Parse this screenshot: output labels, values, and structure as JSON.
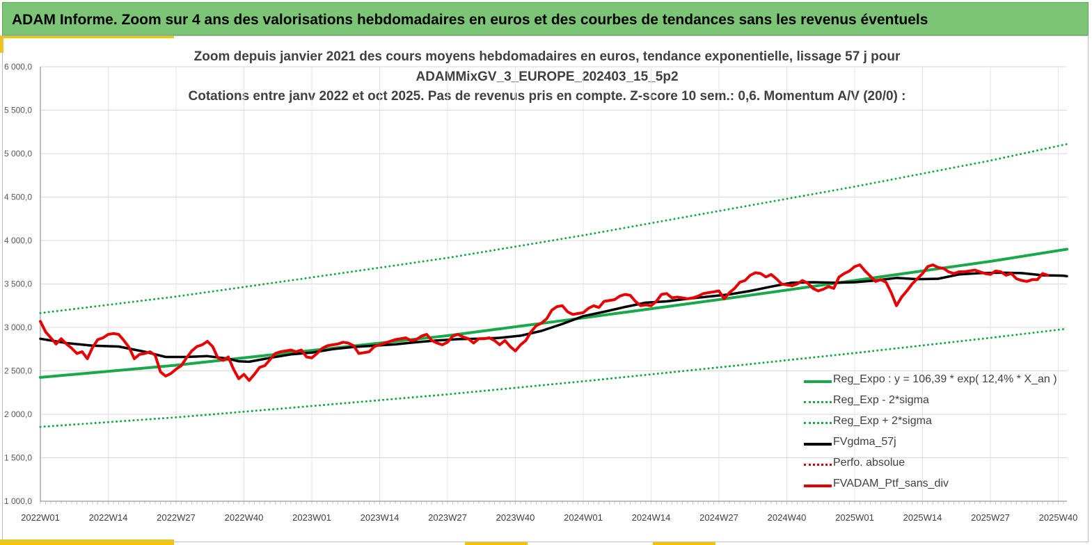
{
  "banner": {
    "title": "ADAM Informe. Zoom sur 4 ans des valorisations hebdomadaires en euros et des courbes de tendances sans les revenus éventuels"
  },
  "colors": {
    "banner": "#7cc576",
    "accent": "#f5c400",
    "trend": "#19a84a",
    "band": "#19a84a",
    "gdma": "#000000",
    "portfolio": "#e60000",
    "perfo": "#c00000",
    "grid": "#d9d9d9"
  },
  "chart_data": {
    "type": "line",
    "title": [
      "Zoom depuis janvier 2021 des cours moyens hebdomadaires  en euros, tendance exponentielle, lissage 57 j pour",
      "ADAMMixGV_3_EUROPE_202403_15_5p2",
      "Cotations  entre janv 2022 et oct 2025. Pas de revenus pris en compte. Z-score 10 sem.: 0,6. Momentum A/V (20/0) :"
    ],
    "xlabel": "",
    "ylabel": "",
    "ylim": [
      1000,
      6000
    ],
    "yticks": [
      "1 000,0",
      "1 500,0",
      "2 000,0",
      "2 500,0",
      "3 000,0",
      "3 500,0",
      "4 000,0",
      "4 500,0",
      "5 000,0",
      "5 500,0",
      "6 000,0"
    ],
    "xlim_weeks": [
      0,
      194
    ],
    "xticks": [
      {
        "week": 0,
        "label": "2022W01"
      },
      {
        "week": 13,
        "label": "2022W14"
      },
      {
        "week": 26,
        "label": "2022W27"
      },
      {
        "week": 39,
        "label": "2022W40"
      },
      {
        "week": 52,
        "label": "2023W01"
      },
      {
        "week": 65,
        "label": "2023W14"
      },
      {
        "week": 78,
        "label": "2023W27"
      },
      {
        "week": 91,
        "label": "2023W40"
      },
      {
        "week": 104,
        "label": "2024W01"
      },
      {
        "week": 117,
        "label": "2024W14"
      },
      {
        "week": 130,
        "label": "2024W27"
      },
      {
        "week": 143,
        "label": "2024W40"
      },
      {
        "week": 156,
        "label": "2025W01"
      },
      {
        "week": 169,
        "label": "2025W14"
      },
      {
        "week": 182,
        "label": "2025W27"
      },
      {
        "week": 195,
        "label": "2025W40"
      }
    ],
    "series": [
      {
        "name": "Reg_Expo : y = 106,39 * exp( 12,4% *  X_an )",
        "style": "solid-thick",
        "color": "#19a84a",
        "points": [
          [
            0,
            2425
          ],
          [
            26,
            2565
          ],
          [
            52,
            2735
          ],
          [
            78,
            2905
          ],
          [
            104,
            3110
          ],
          [
            130,
            3320
          ],
          [
            156,
            3540
          ],
          [
            182,
            3760
          ],
          [
            199,
            3900
          ]
        ]
      },
      {
        "name": "Reg_Exp - 2*sigma",
        "style": "dotted",
        "color": "#19a84a",
        "points": [
          [
            0,
            1855
          ],
          [
            26,
            1965
          ],
          [
            52,
            2095
          ],
          [
            78,
            2230
          ],
          [
            104,
            2380
          ],
          [
            130,
            2540
          ],
          [
            156,
            2705
          ],
          [
            182,
            2880
          ],
          [
            199,
            2985
          ]
        ]
      },
      {
        "name": "Reg_Exp + 2*sigma",
        "style": "dotted",
        "color": "#19a84a",
        "points": [
          [
            0,
            3165
          ],
          [
            26,
            3355
          ],
          [
            52,
            3575
          ],
          [
            78,
            3800
          ],
          [
            104,
            4060
          ],
          [
            130,
            4340
          ],
          [
            156,
            4620
          ],
          [
            182,
            4920
          ],
          [
            199,
            5110
          ]
        ]
      },
      {
        "name": "FVgdma_57j",
        "style": "solid",
        "color": "#000000",
        "points": [
          [
            0,
            2870
          ],
          [
            5,
            2820
          ],
          [
            10,
            2790
          ],
          [
            15,
            2780
          ],
          [
            20,
            2720
          ],
          [
            24,
            2660
          ],
          [
            28,
            2660
          ],
          [
            32,
            2670
          ],
          [
            36,
            2640
          ],
          [
            38,
            2610
          ],
          [
            40,
            2605
          ],
          [
            44,
            2650
          ],
          [
            48,
            2690
          ],
          [
            52,
            2710
          ],
          [
            56,
            2750
          ],
          [
            60,
            2775
          ],
          [
            64,
            2790
          ],
          [
            68,
            2805
          ],
          [
            72,
            2830
          ],
          [
            76,
            2850
          ],
          [
            80,
            2865
          ],
          [
            84,
            2870
          ],
          [
            88,
            2880
          ],
          [
            92,
            2905
          ],
          [
            96,
            2960
          ],
          [
            100,
            3040
          ],
          [
            104,
            3130
          ],
          [
            108,
            3180
          ],
          [
            112,
            3235
          ],
          [
            116,
            3285
          ],
          [
            120,
            3300
          ],
          [
            124,
            3330
          ],
          [
            128,
            3355
          ],
          [
            132,
            3380
          ],
          [
            136,
            3420
          ],
          [
            140,
            3470
          ],
          [
            144,
            3515
          ],
          [
            148,
            3520
          ],
          [
            152,
            3515
          ],
          [
            156,
            3520
          ],
          [
            160,
            3540
          ],
          [
            164,
            3570
          ],
          [
            168,
            3555
          ],
          [
            172,
            3560
          ],
          [
            176,
            3610
          ],
          [
            180,
            3625
          ],
          [
            184,
            3630
          ],
          [
            188,
            3625
          ],
          [
            192,
            3600
          ],
          [
            196,
            3595
          ],
          [
            199,
            3590
          ]
        ]
      },
      {
        "name": "Perfo. absolue",
        "style": "dotted",
        "color": "#c00000",
        "points": []
      },
      {
        "name": "FVADAM_Ptf_sans_div",
        "style": "solid-thick",
        "color": "#e60000",
        "points": [
          [
            0,
            3070
          ],
          [
            1,
            2950
          ],
          [
            2,
            2880
          ],
          [
            3,
            2810
          ],
          [
            4,
            2870
          ],
          [
            5,
            2810
          ],
          [
            6,
            2760
          ],
          [
            7,
            2700
          ],
          [
            8,
            2720
          ],
          [
            9,
            2640
          ],
          [
            10,
            2770
          ],
          [
            11,
            2860
          ],
          [
            12,
            2880
          ],
          [
            13,
            2920
          ],
          [
            14,
            2930
          ],
          [
            15,
            2920
          ],
          [
            16,
            2850
          ],
          [
            17,
            2770
          ],
          [
            18,
            2640
          ],
          [
            19,
            2690
          ],
          [
            20,
            2700
          ],
          [
            21,
            2720
          ],
          [
            22,
            2680
          ],
          [
            23,
            2490
          ],
          [
            24,
            2440
          ],
          [
            25,
            2470
          ],
          [
            26,
            2520
          ],
          [
            27,
            2560
          ],
          [
            28,
            2650
          ],
          [
            29,
            2730
          ],
          [
            30,
            2780
          ],
          [
            31,
            2800
          ],
          [
            32,
            2840
          ],
          [
            33,
            2780
          ],
          [
            34,
            2650
          ],
          [
            35,
            2620
          ],
          [
            36,
            2660
          ],
          [
            37,
            2520
          ],
          [
            38,
            2410
          ],
          [
            39,
            2460
          ],
          [
            40,
            2390
          ],
          [
            41,
            2460
          ],
          [
            42,
            2540
          ],
          [
            43,
            2560
          ],
          [
            44,
            2630
          ],
          [
            45,
            2700
          ],
          [
            46,
            2720
          ],
          [
            47,
            2730
          ],
          [
            48,
            2740
          ],
          [
            49,
            2720
          ],
          [
            50,
            2740
          ],
          [
            51,
            2660
          ],
          [
            52,
            2650
          ],
          [
            53,
            2700
          ],
          [
            54,
            2760
          ],
          [
            55,
            2790
          ],
          [
            56,
            2800
          ],
          [
            57,
            2810
          ],
          [
            58,
            2830
          ],
          [
            59,
            2820
          ],
          [
            60,
            2790
          ],
          [
            61,
            2700
          ],
          [
            62,
            2710
          ],
          [
            63,
            2720
          ],
          [
            64,
            2780
          ],
          [
            65,
            2800
          ],
          [
            66,
            2820
          ],
          [
            67,
            2840
          ],
          [
            68,
            2860
          ],
          [
            69,
            2870
          ],
          [
            70,
            2880
          ],
          [
            71,
            2850
          ],
          [
            72,
            2860
          ],
          [
            73,
            2900
          ],
          [
            74,
            2920
          ],
          [
            75,
            2850
          ],
          [
            76,
            2820
          ],
          [
            77,
            2800
          ],
          [
            78,
            2830
          ],
          [
            79,
            2900
          ],
          [
            80,
            2920
          ],
          [
            81,
            2890
          ],
          [
            82,
            2870
          ],
          [
            83,
            2820
          ],
          [
            84,
            2870
          ],
          [
            85,
            2870
          ],
          [
            86,
            2880
          ],
          [
            87,
            2850
          ],
          [
            88,
            2800
          ],
          [
            89,
            2850
          ],
          [
            90,
            2780
          ],
          [
            91,
            2730
          ],
          [
            92,
            2800
          ],
          [
            93,
            2850
          ],
          [
            94,
            2950
          ],
          [
            95,
            3020
          ],
          [
            96,
            3050
          ],
          [
            97,
            3100
          ],
          [
            98,
            3200
          ],
          [
            99,
            3240
          ],
          [
            100,
            3250
          ],
          [
            101,
            3180
          ],
          [
            102,
            3150
          ],
          [
            103,
            3160
          ],
          [
            104,
            3170
          ],
          [
            105,
            3220
          ],
          [
            106,
            3250
          ],
          [
            107,
            3230
          ],
          [
            108,
            3300
          ],
          [
            109,
            3310
          ],
          [
            110,
            3320
          ],
          [
            111,
            3360
          ],
          [
            112,
            3380
          ],
          [
            113,
            3370
          ],
          [
            114,
            3300
          ],
          [
            115,
            3250
          ],
          [
            116,
            3260
          ],
          [
            117,
            3250
          ],
          [
            118,
            3300
          ],
          [
            119,
            3380
          ],
          [
            120,
            3390
          ],
          [
            121,
            3340
          ],
          [
            122,
            3350
          ],
          [
            123,
            3340
          ],
          [
            124,
            3330
          ],
          [
            125,
            3340
          ],
          [
            126,
            3360
          ],
          [
            127,
            3390
          ],
          [
            128,
            3400
          ],
          [
            129,
            3410
          ],
          [
            130,
            3420
          ],
          [
            131,
            3330
          ],
          [
            132,
            3400
          ],
          [
            133,
            3450
          ],
          [
            134,
            3520
          ],
          [
            135,
            3540
          ],
          [
            136,
            3600
          ],
          [
            137,
            3630
          ],
          [
            138,
            3620
          ],
          [
            139,
            3580
          ],
          [
            140,
            3610
          ],
          [
            141,
            3560
          ],
          [
            142,
            3500
          ],
          [
            143,
            3490
          ],
          [
            144,
            3480
          ],
          [
            145,
            3500
          ],
          [
            146,
            3540
          ],
          [
            147,
            3510
          ],
          [
            148,
            3450
          ],
          [
            149,
            3420
          ],
          [
            150,
            3440
          ],
          [
            151,
            3470
          ],
          [
            152,
            3450
          ],
          [
            153,
            3580
          ],
          [
            154,
            3620
          ],
          [
            155,
            3650
          ],
          [
            156,
            3700
          ],
          [
            157,
            3720
          ],
          [
            158,
            3650
          ],
          [
            159,
            3590
          ],
          [
            160,
            3530
          ],
          [
            161,
            3550
          ],
          [
            162,
            3520
          ],
          [
            163,
            3400
          ],
          [
            164,
            3250
          ],
          [
            165,
            3350
          ],
          [
            166,
            3420
          ],
          [
            167,
            3500
          ],
          [
            168,
            3560
          ],
          [
            169,
            3620
          ],
          [
            170,
            3700
          ],
          [
            171,
            3720
          ],
          [
            172,
            3690
          ],
          [
            173,
            3680
          ],
          [
            174,
            3640
          ],
          [
            175,
            3620
          ],
          [
            176,
            3640
          ],
          [
            177,
            3640
          ],
          [
            178,
            3650
          ],
          [
            179,
            3660
          ],
          [
            180,
            3640
          ],
          [
            181,
            3620
          ],
          [
            182,
            3610
          ],
          [
            183,
            3650
          ],
          [
            184,
            3640
          ],
          [
            185,
            3600
          ],
          [
            186,
            3620
          ],
          [
            187,
            3560
          ],
          [
            188,
            3540
          ],
          [
            189,
            3530
          ],
          [
            190,
            3550
          ],
          [
            191,
            3550
          ],
          [
            192,
            3620
          ],
          [
            193,
            3600
          ]
        ]
      }
    ]
  }
}
